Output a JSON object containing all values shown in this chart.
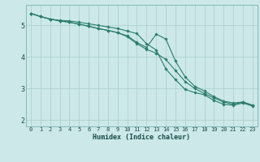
{
  "title": "",
  "xlabel": "Humidex (Indice chaleur)",
  "ylabel": "",
  "bg_color": "#cce8e8",
  "line_color": "#2a7d6b",
  "grid_color": "#aacece",
  "ylim": [
    1.8,
    5.65
  ],
  "xlim": [
    -0.5,
    23.5
  ],
  "x": [
    0,
    1,
    2,
    3,
    4,
    5,
    6,
    7,
    8,
    9,
    10,
    11,
    12,
    13,
    14,
    15,
    16,
    17,
    18,
    19,
    20,
    21,
    22,
    23
  ],
  "line1": [
    5.38,
    5.28,
    5.2,
    5.16,
    5.14,
    5.1,
    5.05,
    5.0,
    4.95,
    4.9,
    4.82,
    4.74,
    4.42,
    4.22,
    3.62,
    3.28,
    2.97,
    2.87,
    2.8,
    2.62,
    2.5,
    2.47,
    2.54,
    2.44
  ],
  "line2": [
    5.38,
    5.28,
    5.2,
    5.14,
    5.1,
    5.04,
    4.97,
    4.9,
    4.84,
    4.77,
    4.67,
    4.46,
    4.3,
    4.72,
    4.57,
    3.87,
    3.37,
    3.07,
    2.92,
    2.74,
    2.6,
    2.54,
    2.57,
    2.47
  ],
  "line3": [
    5.38,
    5.28,
    5.2,
    5.14,
    5.1,
    5.04,
    4.97,
    4.9,
    4.84,
    4.77,
    4.64,
    4.42,
    4.24,
    4.12,
    3.92,
    3.57,
    3.22,
    3.0,
    2.84,
    2.7,
    2.57,
    2.5,
    2.57,
    2.47
  ],
  "yticks": [
    2,
    3,
    4,
    5
  ],
  "xticks": [
    0,
    1,
    2,
    3,
    4,
    5,
    6,
    7,
    8,
    9,
    10,
    11,
    12,
    13,
    14,
    15,
    16,
    17,
    18,
    19,
    20,
    21,
    22,
    23
  ],
  "marker": "D",
  "markersize": 1.8,
  "linewidth": 0.8,
  "tick_fontsize": 5.0,
  "xlabel_fontsize": 6.0
}
